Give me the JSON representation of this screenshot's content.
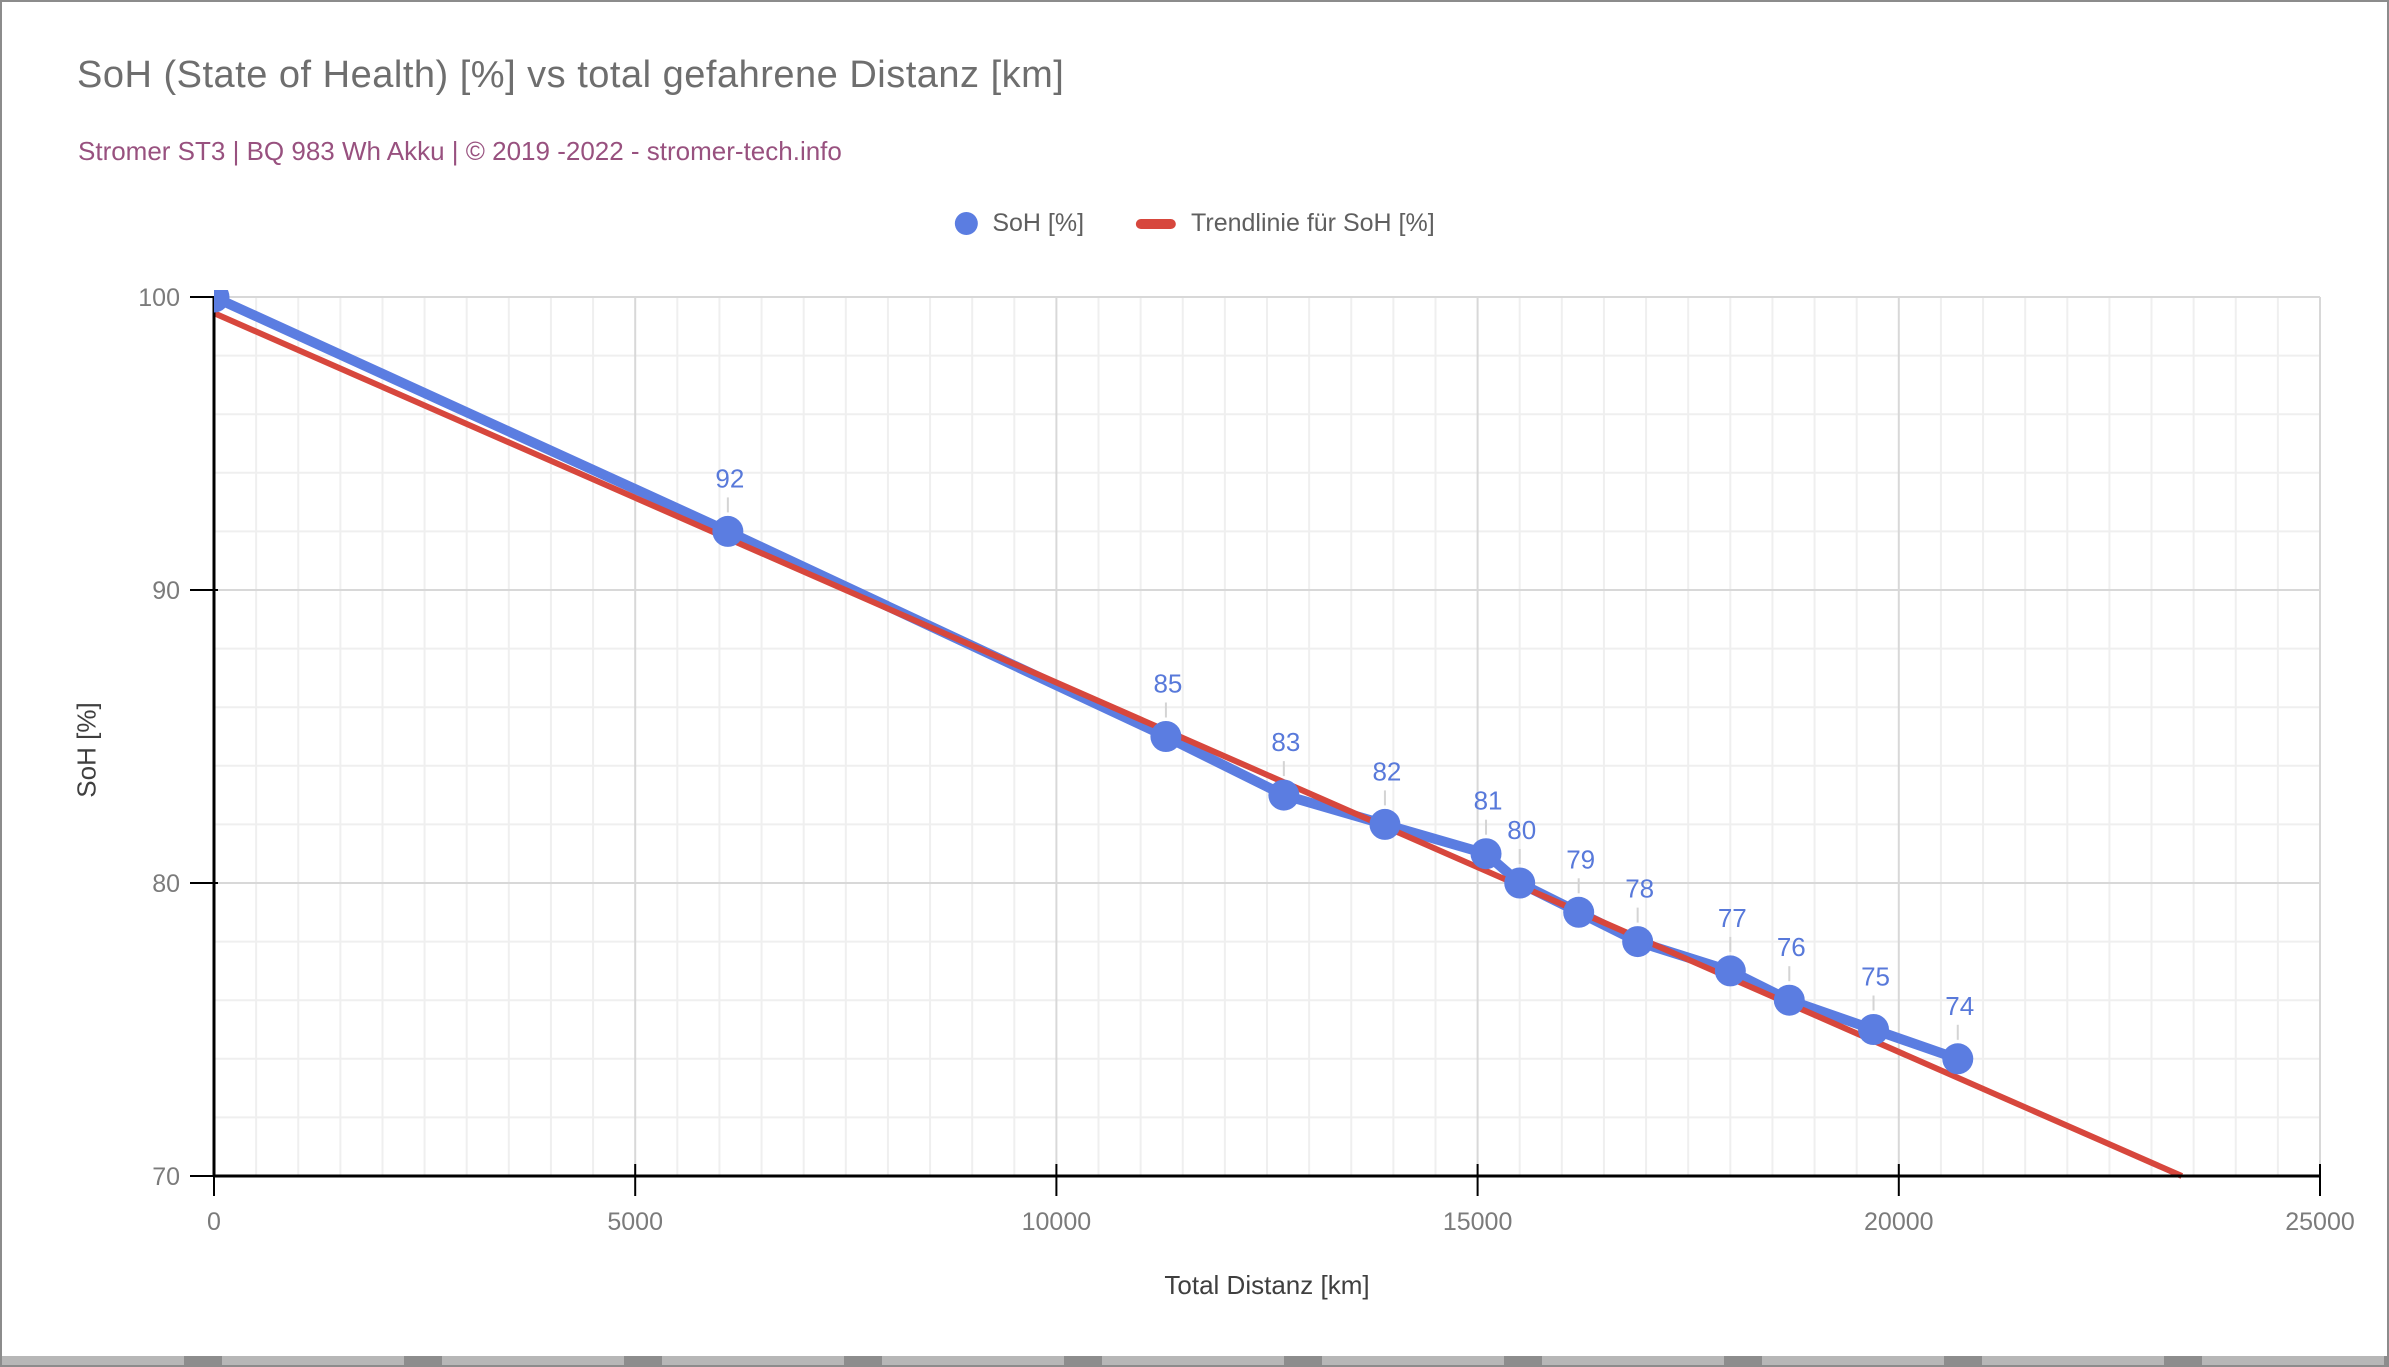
{
  "chart_data": {
    "type": "line",
    "title": "SoH (State of Health) [%] vs total gefahrene Distanz [km]",
    "subtitle": "Stromer ST3 | BQ 983 Wh Akku | ©  2019 -2022 - stromer-tech.info",
    "xlabel": "Total Distanz [km]",
    "ylabel": "SoH [%]",
    "xlim": [
      0,
      25000
    ],
    "ylim": [
      70,
      100
    ],
    "grid": "major and minor gridlines on",
    "x_major_tick_step": 5000,
    "x_minor_grid_step": 500,
    "y_major_tick_step": 10,
    "y_minor_grid_step": 2,
    "axis": {
      "x_ticks": [
        0,
        5000,
        10000,
        15000,
        20000,
        25000
      ],
      "y_ticks": [
        70,
        80,
        90,
        100
      ]
    },
    "legend_position": "top-center",
    "legend": [
      {
        "label": "SoH [%]",
        "marker": "circle",
        "color": "#5b7de1"
      },
      {
        "label": "Trendlinie für SoH [%]",
        "marker": "dash",
        "color": "#d7473d"
      }
    ],
    "series": [
      {
        "name": "SoH [%]",
        "color": "#5b7de1",
        "label_color": "#5879da",
        "points": [
          {
            "x": 0,
            "y": 100,
            "label": ""
          },
          {
            "x": 6100,
            "y": 92,
            "label": "92"
          },
          {
            "x": 11300,
            "y": 85,
            "label": "85"
          },
          {
            "x": 12700,
            "y": 83,
            "label": "83"
          },
          {
            "x": 13900,
            "y": 82,
            "label": "82"
          },
          {
            "x": 15100,
            "y": 81,
            "label": "81"
          },
          {
            "x": 15500,
            "y": 80,
            "label": "80"
          },
          {
            "x": 16200,
            "y": 79,
            "label": "79"
          },
          {
            "x": 16900,
            "y": 78,
            "label": "78"
          },
          {
            "x": 18000,
            "y": 77,
            "label": "77"
          },
          {
            "x": 18700,
            "y": 76,
            "label": "76"
          },
          {
            "x": 19700,
            "y": 75,
            "label": "75"
          },
          {
            "x": 20700,
            "y": 74,
            "label": "74"
          }
        ]
      }
    ],
    "trendline": {
      "name": "Trendlinie für SoH [%]",
      "color": "#d7473d",
      "x": [
        0,
        23360
      ],
      "y": [
        99.45,
        70
      ]
    },
    "style": {
      "grid_minor": "#efefef",
      "grid_major": "#d8d8d8",
      "axis_color": "#000000",
      "tick_label_color": "#7b7b7b",
      "leader_line_color": "#d4d4d4",
      "title_color": "#6e6e6e",
      "subtitle_color": "#98517f"
    }
  }
}
